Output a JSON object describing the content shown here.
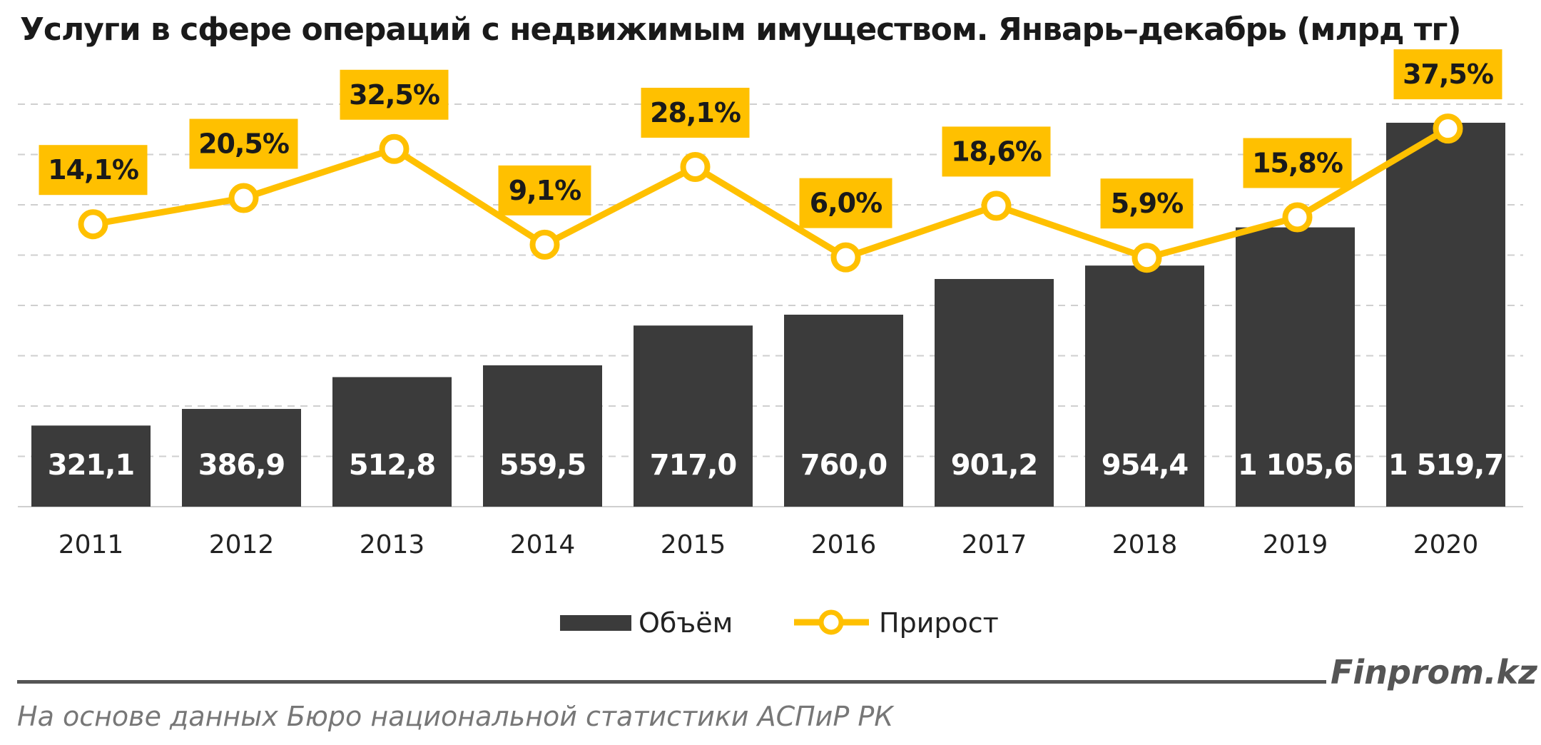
{
  "chart_data": {
    "type": "bar",
    "title": "Услуги в сфере операций с недвижимым имуществом. Январь–декабрь (млрд тг)",
    "categories": [
      "2011",
      "2012",
      "2013",
      "2014",
      "2015",
      "2016",
      "2017",
      "2018",
      "2019",
      "2020"
    ],
    "series": [
      {
        "name": "Объём",
        "type": "bar",
        "color": "#3b3b3b",
        "values": [
          321.1,
          386.9,
          512.8,
          559.5,
          717.0,
          760.0,
          901.2,
          954.4,
          1105.6,
          1519.7
        ],
        "labels": [
          "321,1",
          "386,9",
          "512,8",
          "559,5",
          "717,0",
          "760,0",
          "901,2",
          "954,4",
          "1 105,6",
          "1 519,7"
        ]
      },
      {
        "name": "Прирост",
        "type": "line",
        "color": "#ffc000",
        "values": [
          14.1,
          20.5,
          32.5,
          9.1,
          28.1,
          6.0,
          18.6,
          5.9,
          15.8,
          37.5
        ],
        "labels": [
          "14,1%",
          "20,5%",
          "32,5%",
          "9,1%",
          "28,1%",
          "6,0%",
          "18,6%",
          "5,9%",
          "15,8%",
          "37,5%"
        ]
      }
    ],
    "ylim": [
      0,
      1600
    ],
    "grid": true,
    "legend": "bottom-center"
  },
  "footer": {
    "brand": "Finprom.kz",
    "source": "На основе данных Бюро национальной статистики АСПиР РК"
  }
}
